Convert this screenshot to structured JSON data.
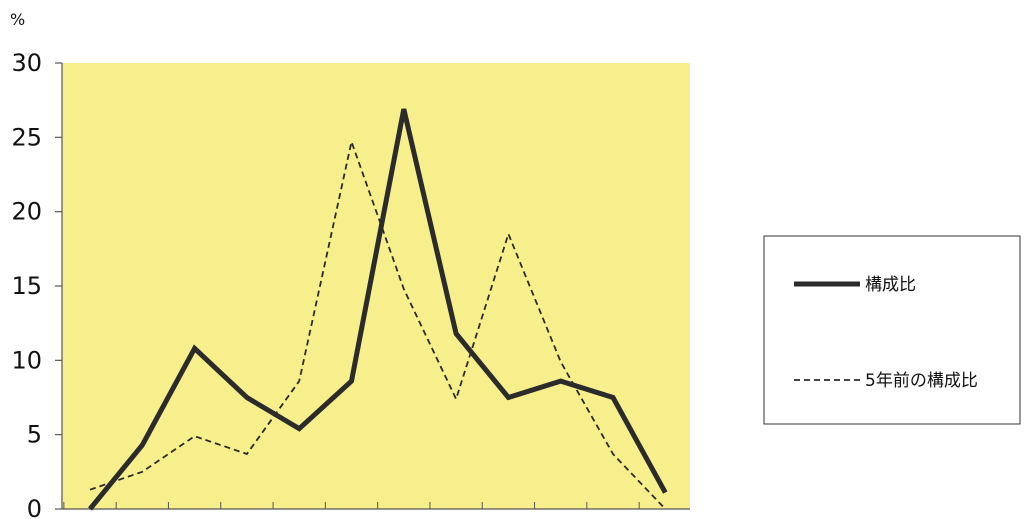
{
  "chart_data": {
    "type": "line",
    "title": "",
    "ylabel": "%",
    "xlabel": "",
    "ylim": [
      0,
      30
    ],
    "yticks": [
      0,
      5,
      10,
      15,
      20,
      25,
      30
    ],
    "grid": false,
    "legend_position": "right",
    "x": [
      1,
      2,
      3,
      4,
      5,
      6,
      7,
      8,
      9,
      10,
      11,
      12
    ],
    "series": [
      {
        "name": "構成比",
        "style": "solid",
        "values": [
          0,
          4.3,
          10.8,
          7.5,
          5.4,
          8.6,
          26.9,
          11.8,
          7.5,
          8.6,
          7.5,
          1.1
        ]
      },
      {
        "name": "5年前の構成比",
        "style": "dashed",
        "values": [
          1.3,
          2.5,
          4.9,
          3.7,
          8.6,
          24.7,
          14.8,
          7.4,
          18.5,
          9.9,
          3.7,
          0
        ]
      }
    ]
  },
  "colors": {
    "plot_background": "#f7ef8c",
    "line": "#2b2b2b",
    "axis": "#555555"
  }
}
